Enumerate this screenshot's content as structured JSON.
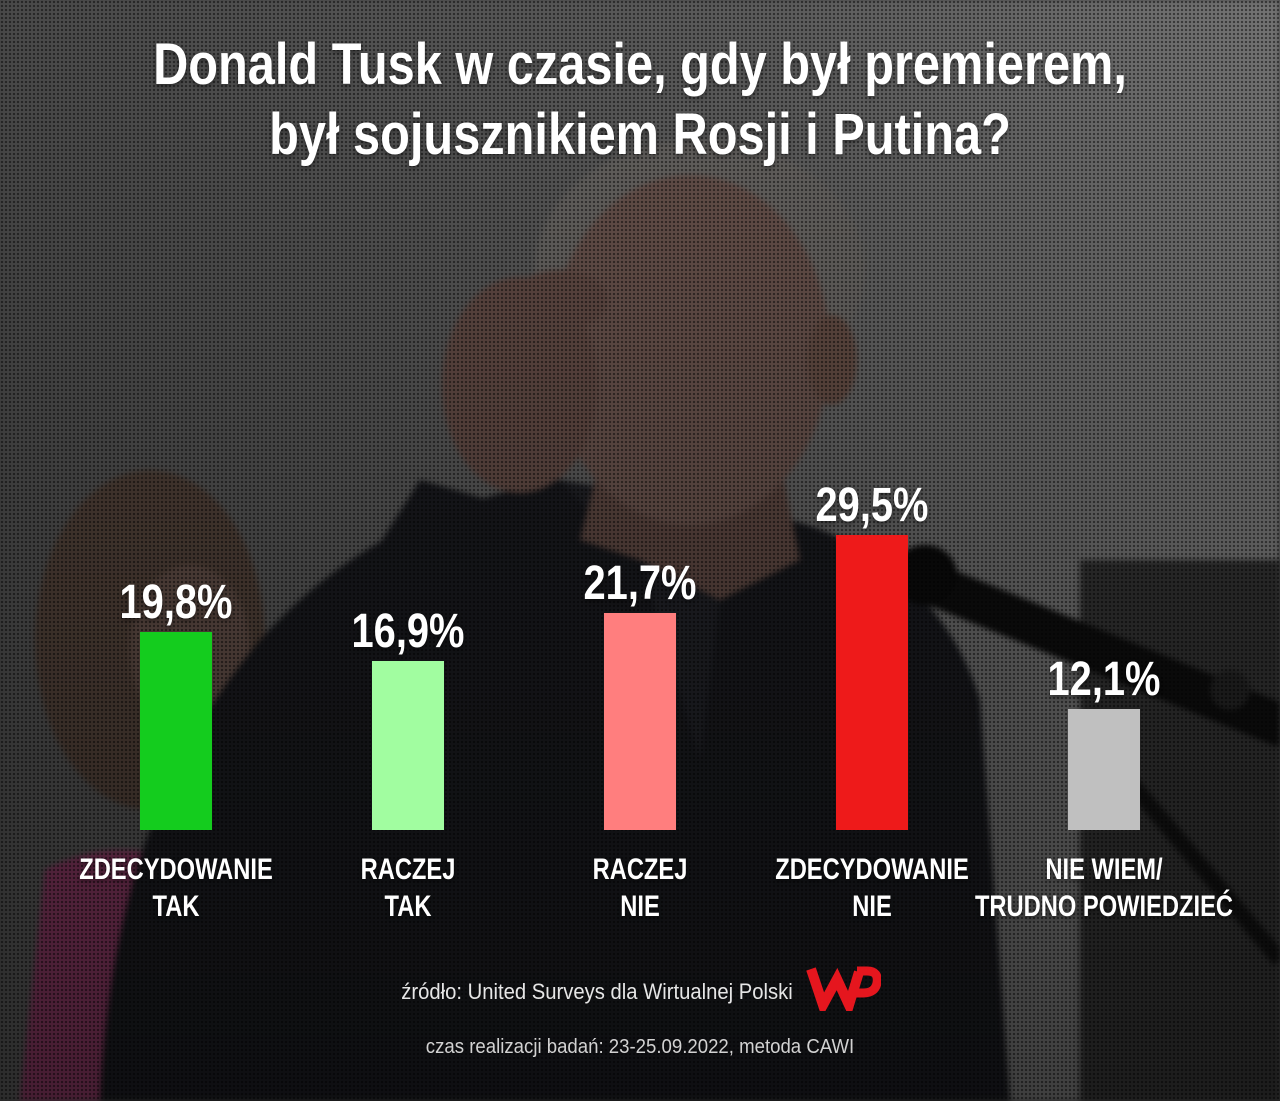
{
  "chart_data": {
    "type": "bar",
    "title": [
      "Donald Tusk w czasie, gdy był premierem,",
      "był sojusznikiem Rosji i Putina?"
    ],
    "categories": [
      "ZDECYDOWANIE\nTAK",
      "RACZEJ\nTAK",
      "RACZEJ\nNIE",
      "ZDECYDOWANIE\nNIE",
      "NIE WIEM/\nTRUDNO POWIEDZIEĆ"
    ],
    "values": [
      19.8,
      16.9,
      21.7,
      29.5,
      12.1
    ],
    "data_labels": [
      "19,8%",
      "16,9%",
      "21,7%",
      "29,5%",
      "12,1%"
    ],
    "colors": [
      "#14cc1e",
      "#a1fda0",
      "#ff7e7e",
      "#ee1a1a",
      "#c0c0c0"
    ],
    "grid": false
  },
  "footer": {
    "source": "źródło: United Surveys dla Wirtualnej Polski",
    "fieldwork": "czas realizacji badań: 23-25.09.2022, metoda CAWI",
    "logo_icon": "wp-logo-icon",
    "logo_color": "#e5161e"
  }
}
